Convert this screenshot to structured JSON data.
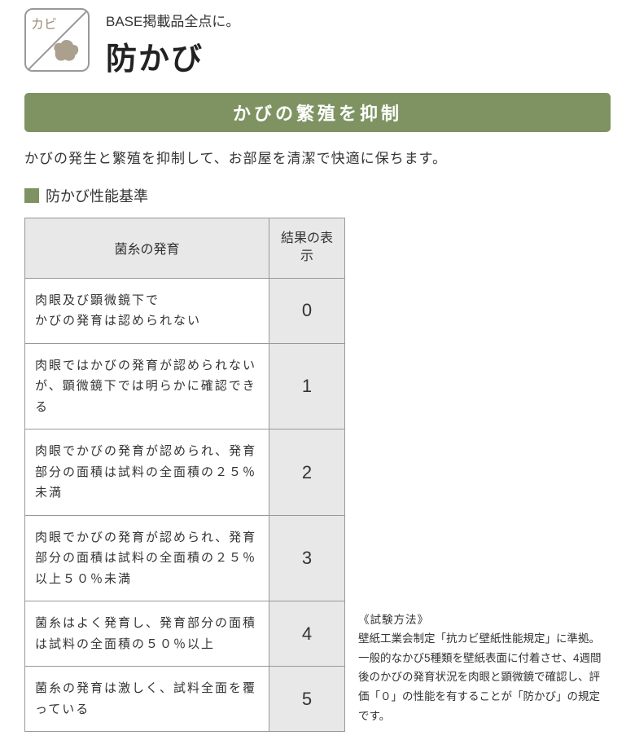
{
  "header": {
    "icon_label": "カビ",
    "subtitle": "BASE掲載品全点に。",
    "title": "防かび"
  },
  "banner": "かびの繁殖を抑制",
  "description": "かびの発生と繁殖を抑制して、お部屋を清潔で快適に保ちます。",
  "section_title": "防かび性能基準",
  "table": {
    "col_desc_header": "菌糸の発育",
    "col_result_header": "結果の表示",
    "rows": [
      {
        "desc": "肉眼及び顕微鏡下で\nかびの発育は認められない",
        "result": "0"
      },
      {
        "desc": "肉眼ではかびの発育が認められないが、顕微鏡下では明らかに確認できる",
        "result": "1"
      },
      {
        "desc": "肉眼でかびの発育が認められ、発育部分の面積は試料の全面積の２５％未満",
        "result": "2"
      },
      {
        "desc": "肉眼でかびの発育が認められ、発育部分の面積は試料の全面積の２５％以上５０％未満",
        "result": "3"
      },
      {
        "desc": "菌糸はよく発育し、発育部分の面積は試料の全面積の５０％以上",
        "result": "4"
      },
      {
        "desc": "菌糸の発育は激しく、試料全面を覆っている",
        "result": "5"
      }
    ]
  },
  "method": {
    "title": "《試験方法》",
    "body": "壁紙工業会制定「抗カビ壁紙性能規定」に準拠。一般的なかび5種類を壁紙表面に付着させ、4週間後のかびの発育状況を肉眼と顕微鏡で確認し、評価「０」の性能を有することが「防かび」の規定です。"
  },
  "colors": {
    "accent": "#7e9361",
    "border": "#999999",
    "header_bg": "#e8e8e8",
    "icon_brown": "#9b8f79"
  }
}
